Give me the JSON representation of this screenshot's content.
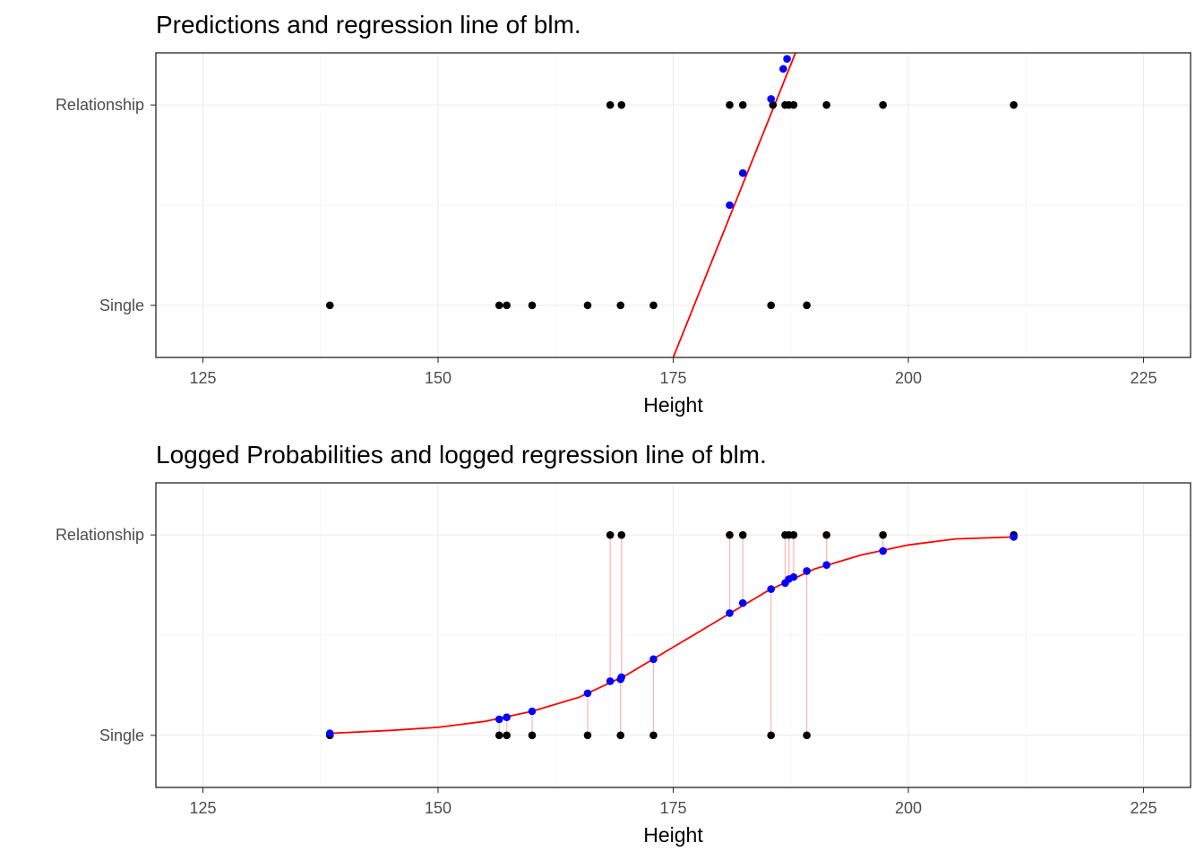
{
  "chart_data": [
    {
      "type": "scatter",
      "title": "Predictions and regression line of blm.",
      "xlabel": "Height",
      "ylabel": "",
      "x_ticks": [
        125,
        150,
        175,
        200,
        225
      ],
      "y_tick_labels": [
        "Single",
        "Relationship"
      ],
      "xlim": [
        120,
        230
      ],
      "ylim": [
        -0.26,
        1.26
      ],
      "grid": true,
      "observed_points": {
        "color": "#000000",
        "x": [
          138.5,
          156.5,
          157.3,
          160.0,
          165.9,
          169.4,
          172.9,
          185.4,
          189.2,
          168.3,
          169.5,
          181.0,
          182.4,
          185.6,
          186.9,
          187.3,
          187.8,
          191.3,
          197.3,
          211.2
        ],
        "y": [
          0,
          0,
          0,
          0,
          0,
          0,
          0,
          0,
          0,
          1,
          1,
          1,
          1,
          1,
          1,
          1,
          1,
          1,
          1,
          1
        ]
      },
      "predicted_points": {
        "color": "#0000ff",
        "x": [
          181.0,
          182.4,
          185.4,
          186.7,
          187.1
        ],
        "y": [
          0.5,
          0.66,
          1.03,
          1.18,
          1.23
        ]
      },
      "regression_line": {
        "color": "#ff0000",
        "x": [
          175.0,
          188.0
        ],
        "y": [
          -0.26,
          1.26
        ]
      }
    },
    {
      "type": "scatter",
      "title": "Logged Probabilities and logged regression line of blm.",
      "xlabel": "Height",
      "ylabel": "",
      "x_ticks": [
        125,
        150,
        175,
        200,
        225
      ],
      "y_tick_labels": [
        "Single",
        "Relationship"
      ],
      "xlim": [
        120,
        230
      ],
      "ylim": [
        -0.26,
        1.26
      ],
      "grid": true,
      "observed_points": {
        "color": "#000000",
        "x": [
          138.5,
          156.5,
          157.3,
          160.0,
          165.9,
          169.4,
          172.9,
          185.4,
          189.2,
          168.3,
          169.5,
          181.0,
          182.4,
          186.9,
          187.3,
          187.8,
          191.3,
          197.3,
          211.2
        ],
        "y": [
          0,
          0,
          0,
          0,
          0,
          0,
          0,
          0,
          0,
          1,
          1,
          1,
          1,
          1,
          1,
          1,
          1,
          1,
          1
        ]
      },
      "predicted_points": {
        "color": "#0000ff",
        "x": [
          138.5,
          156.5,
          157.3,
          160.0,
          165.9,
          168.3,
          169.4,
          169.5,
          172.9,
          181.0,
          182.4,
          185.4,
          186.9,
          187.3,
          187.8,
          189.2,
          191.3,
          197.3,
          211.2
        ],
        "y": [
          0.01,
          0.08,
          0.09,
          0.12,
          0.21,
          0.27,
          0.28,
          0.29,
          0.38,
          0.61,
          0.66,
          0.73,
          0.76,
          0.78,
          0.79,
          0.82,
          0.85,
          0.92,
          0.99
        ]
      },
      "residual_lines": {
        "color": "#ffb3b3"
      },
      "logistic_curve": {
        "color": "#ff0000",
        "x": [
          138.5,
          145,
          150,
          155,
          160,
          165,
          170,
          175,
          180,
          185,
          190,
          195,
          200,
          205,
          211.2
        ],
        "y": [
          0.01,
          0.025,
          0.04,
          0.07,
          0.12,
          0.19,
          0.3,
          0.44,
          0.58,
          0.72,
          0.83,
          0.9,
          0.95,
          0.98,
          0.99
        ]
      }
    }
  ]
}
